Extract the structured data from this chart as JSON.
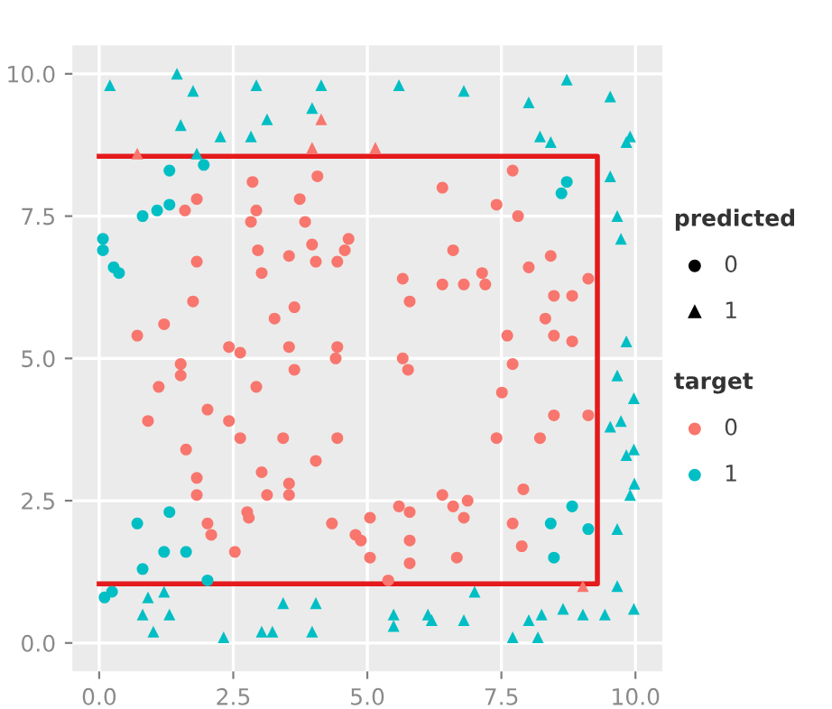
{
  "chart_data": {
    "type": "scatter",
    "legend_title": "target",
    "annotations": [
      "predicted"
    ],
    "legend": "right",
    "grid": true,
    "xlim": [
      -0.5,
      10.5
    ],
    "ylim": [
      -0.5,
      10.5
    ],
    "xticks": [
      {
        "value": 0,
        "label": "0.0"
      },
      {
        "value": 2.5,
        "label": "2.5"
      },
      {
        "value": 5,
        "label": "5.0"
      },
      {
        "value": 7.5,
        "label": "7.5"
      },
      {
        "value": 10,
        "label": "10.0"
      }
    ],
    "yticks": [
      {
        "value": 0,
        "label": "0.0"
      },
      {
        "value": 2.5,
        "label": "2.5"
      },
      {
        "value": 5,
        "label": "5.0"
      },
      {
        "value": 7.5,
        "label": "7.5"
      },
      {
        "value": 10,
        "label": "10.0"
      }
    ],
    "series": [
      {
        "name": "0",
        "color": "#f8766d",
        "marker": "circle",
        "x": [
          2.86,
          4.07,
          3.74,
          1.82,
          1.6,
          2.93,
          2.83,
          3.84,
          4.65,
          4.58,
          2.96,
          3.97,
          3.54,
          4.04,
          4.44,
          1.82,
          3.03,
          1.75,
          3.64,
          1.21,
          3.27,
          0.71,
          2.42,
          2.63,
          3.54,
          4.44,
          1.52,
          1.52,
          1.11,
          2.93,
          3.64,
          4.41,
          0.91,
          2.02,
          2.42,
          2.63,
          3.43,
          4.44,
          1.62,
          4.04,
          3.03,
          1.82,
          3.54,
          1.82,
          3.13,
          3.54,
          2.76,
          2.79,
          4.34,
          2.02,
          2.09,
          4.78,
          2.53,
          7.71,
          6.4,
          7.41,
          7.81,
          6.6,
          8.42,
          5.66,
          6.4,
          6.8,
          7.14,
          7.2,
          8.01,
          9.12,
          5.79,
          8.48,
          8.82,
          8.32,
          7.61,
          8.48,
          8.82,
          5.66,
          7.71,
          5.76,
          7.51,
          8.48,
          9.12,
          7.41,
          8.22,
          7.91,
          6.4,
          6.6,
          6.87,
          6.8,
          5.59,
          5.79,
          5.05,
          7.71,
          4.88,
          5.79,
          7.88,
          5.05,
          5.79,
          6.67,
          5.39
        ],
        "values": [
          8.1,
          8.2,
          7.8,
          7.8,
          7.6,
          7.6,
          7.4,
          7.4,
          7.1,
          6.9,
          6.9,
          7.0,
          6.8,
          6.7,
          6.7,
          6.7,
          6.5,
          6.0,
          5.9,
          5.6,
          5.7,
          5.4,
          5.2,
          5.1,
          5.2,
          5.2,
          4.9,
          4.7,
          4.5,
          4.5,
          4.8,
          5.0,
          3.9,
          4.1,
          3.9,
          3.6,
          3.6,
          3.6,
          3.4,
          3.2,
          3.0,
          2.9,
          2.8,
          2.6,
          2.6,
          2.6,
          2.3,
          2.2,
          2.1,
          2.1,
          1.9,
          1.9,
          1.6,
          8.3,
          8.0,
          7.7,
          7.5,
          6.9,
          6.8,
          6.4,
          6.3,
          6.3,
          6.5,
          6.3,
          6.6,
          6.4,
          6.0,
          6.1,
          6.1,
          5.7,
          5.4,
          5.4,
          5.3,
          5.0,
          4.9,
          4.8,
          4.4,
          4.0,
          4.0,
          3.6,
          3.6,
          2.7,
          2.6,
          2.4,
          2.5,
          2.2,
          2.4,
          2.3,
          2.2,
          2.1,
          1.8,
          1.8,
          1.7,
          1.5,
          1.4,
          1.5,
          1.1
        ]
      },
      {
        "name": "1",
        "color": "#00bfc4",
        "marker": "triangle",
        "x": [
          0.2,
          1.45,
          1.75,
          2.93,
          4.14,
          3.97,
          1.52,
          3.13,
          2.26,
          2.83,
          1.82,
          5.59,
          6.8,
          8.72,
          8.01,
          9.53,
          8.22,
          8.42,
          9.9,
          9.83,
          9.53,
          9.66,
          9.73,
          9.83,
          9.66,
          9.97,
          9.53,
          9.73,
          9.83,
          9.97,
          9.9,
          9.98,
          9.66,
          9.66,
          9.97,
          9.43,
          9.02,
          8.65,
          8.25,
          8.01,
          8.18,
          7.71,
          7.0,
          6.8,
          6.13,
          6.2,
          5.49,
          5.49,
          0.91,
          1.21,
          0.81,
          1.31,
          1.01,
          2.32,
          3.03,
          3.23,
          3.43,
          4.04,
          3.97
        ],
        "values": [
          9.8,
          10.0,
          9.7,
          9.8,
          9.8,
          9.4,
          9.1,
          9.2,
          8.9,
          8.9,
          8.6,
          9.8,
          9.7,
          9.9,
          9.5,
          9.6,
          8.9,
          8.8,
          8.9,
          8.8,
          8.2,
          7.5,
          7.1,
          5.3,
          4.7,
          4.3,
          3.8,
          3.9,
          3.3,
          3.4,
          2.6,
          2.8,
          2.0,
          1.0,
          0.6,
          0.5,
          0.5,
          0.6,
          0.5,
          0.4,
          0.1,
          0.1,
          0.9,
          0.4,
          0.5,
          0.4,
          0.5,
          0.3,
          0.8,
          0.9,
          0.5,
          0.5,
          0.2,
          0.1,
          0.2,
          0.2,
          0.7,
          0.7,
          0.2
        ]
      },
      {
        "color": "#00bfc4",
        "marker": "circle",
        "x": [
          1.31,
          1.95,
          0.81,
          1.08,
          1.31,
          0.07,
          0.07,
          0.27,
          0.37,
          8.72,
          8.62,
          0.71,
          1.31,
          1.21,
          1.62,
          0.81,
          2.02,
          0.1,
          0.24,
          8.82,
          8.42,
          9.12,
          8.48
        ],
        "values": [
          8.3,
          8.4,
          7.5,
          7.6,
          7.7,
          7.1,
          6.9,
          6.6,
          6.5,
          8.1,
          7.9,
          2.1,
          2.3,
          1.6,
          1.6,
          1.3,
          1.1,
          0.8,
          0.9,
          2.4,
          2.1,
          2.0,
          1.5
        ]
      },
      {
        "color": "#f8766d",
        "marker": "triangle",
        "x": [
          0.71,
          3.97,
          4.14,
          5.15,
          9.02
        ],
        "values": [
          8.6,
          8.7,
          9.2,
          8.7,
          1.0
        ]
      },
      {
        "type": "line",
        "color": "#e41a1c",
        "x": [
          0.0,
          9.29,
          9.29,
          0.0
        ],
        "values": [
          8.55,
          8.55,
          1.04,
          1.04
        ]
      }
    ]
  }
}
